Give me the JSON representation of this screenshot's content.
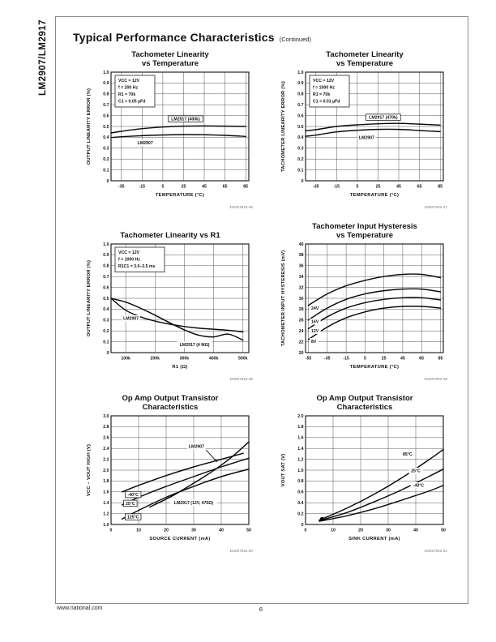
{
  "page": {
    "side_title": "LM2907/LM2917"
  },
  "header": {
    "title": "Typical Performance Characteristics",
    "continued": "(Continued)"
  },
  "footer": {
    "url": "www.national.com",
    "page_number": "6"
  },
  "chart_data": [
    {
      "type": "line",
      "title_lines": [
        "Tachometer Linearity",
        "vs Temperature"
      ],
      "code": "DS007942-46",
      "xlabel": "TEMPERATURE (°C)",
      "ylabel": "OUTPUT LINEARITY ERROR (%)",
      "xlim": [
        -45,
        88
      ],
      "ylim": [
        0,
        1
      ],
      "grid": true,
      "legend": "none",
      "xticks": {
        "values": [
          -35,
          -15,
          5,
          25,
          45,
          65,
          85
        ],
        "labels": [
          "-35",
          "-15",
          "5",
          "25",
          "45",
          "65",
          "85"
        ]
      },
      "yticks": {
        "values": [
          0,
          0.1,
          0.2,
          0.3,
          0.4,
          0.5,
          0.6,
          0.7,
          0.8,
          0.9,
          1.0
        ],
        "labels": [
          "0",
          "0.1",
          "0.2",
          "0.3",
          "0.4",
          "0.5",
          "0.6",
          "0.7",
          "0.8",
          "0.9",
          "1.0"
        ]
      },
      "conditions": [
        "VCC = 12V",
        "f = 200 Hz",
        "R1 = 70k",
        "C1 = 0.05 µFd"
      ],
      "series": [
        {
          "name": "LM2917 (400k)",
          "x": [
            -45,
            -35,
            -15,
            5,
            25,
            45,
            65,
            85
          ],
          "y": [
            0.44,
            0.455,
            0.48,
            0.495,
            0.503,
            0.505,
            0.503,
            0.5
          ]
        },
        {
          "name": "LM2907",
          "x": [
            -45,
            -35,
            -15,
            5,
            25,
            45,
            65,
            85
          ],
          "y": [
            0.398,
            0.405,
            0.415,
            0.422,
            0.425,
            0.424,
            0.418,
            0.408
          ]
        }
      ],
      "annotations": [
        {
          "text": "LM2917 (400k)",
          "x": 27,
          "y": 0.57,
          "boxed": true
        },
        {
          "text": "LM2907",
          "x": -12,
          "y": 0.35
        }
      ]
    },
    {
      "type": "line",
      "title_lines": [
        "Tachometer Linearity",
        "vs Temperature"
      ],
      "code": "DS007942-47",
      "xlabel": "TEMPERATURE (°C)",
      "ylabel": "TACHOMETER LINEARITY ERROR (%)",
      "xlim": [
        -45,
        88
      ],
      "ylim": [
        0,
        1
      ],
      "grid": true,
      "legend": "none",
      "xticks": {
        "values": [
          -35,
          -15,
          5,
          25,
          45,
          65,
          85
        ],
        "labels": [
          "-35",
          "-15",
          "5",
          "25",
          "45",
          "65",
          "85"
        ]
      },
      "yticks": {
        "values": [
          0,
          0.1,
          0.2,
          0.3,
          0.4,
          0.5,
          0.6,
          0.7,
          0.8,
          0.9,
          1.0
        ],
        "labels": [
          "0",
          "0.1",
          "0.2",
          "0.3",
          "0.4",
          "0.5",
          "0.6",
          "0.7",
          "0.8",
          "0.9",
          "1.0"
        ]
      },
      "conditions": [
        "VCC = 12V",
        "f = 1000 Hz",
        "R1 = 70k",
        "C1 = 0.01 µFd"
      ],
      "series": [
        {
          "name": "LM2917 (470k)",
          "x": [
            -45,
            -35,
            -15,
            5,
            25,
            45,
            65,
            85
          ],
          "y": [
            0.46,
            0.47,
            0.5,
            0.515,
            0.525,
            0.528,
            0.522,
            0.512
          ]
        },
        {
          "name": "LM2907",
          "x": [
            -45,
            -35,
            -15,
            5,
            25,
            45,
            65,
            85
          ],
          "y": [
            0.41,
            0.42,
            0.45,
            0.465,
            0.473,
            0.473,
            0.463,
            0.452
          ]
        }
      ],
      "annotations": [
        {
          "text": "LM2917 (470k)",
          "x": 30,
          "y": 0.585,
          "boxed": true
        },
        {
          "text": "LM2907",
          "x": 14,
          "y": 0.4
        }
      ]
    },
    {
      "type": "line",
      "title_lines": [
        "Tachometer Linearity vs R1"
      ],
      "code": "DS007942-48",
      "xlabel": "R1 (Ω)",
      "ylabel": "OUTPUT LINEARITY ERROR (%)",
      "xlim": [
        50,
        520
      ],
      "ylim": [
        0,
        1
      ],
      "grid": true,
      "legend": "none",
      "xticks": {
        "values": [
          100,
          200,
          300,
          400,
          500
        ],
        "labels": [
          "100k",
          "200k",
          "300k",
          "400k",
          "500k"
        ]
      },
      "yticks": {
        "values": [
          0,
          0.1,
          0.2,
          0.3,
          0.4,
          0.5,
          0.6,
          0.7,
          0.8,
          0.9,
          1.0
        ],
        "labels": [
          "0",
          "0.1",
          "0.2",
          "0.3",
          "0.4",
          "0.5",
          "0.6",
          "0.7",
          "0.8",
          "0.9",
          "1.0"
        ]
      },
      "conditions": [
        "VCC = 12V",
        "f = 1000 Hz",
        "R1C1 = 3.0–3.5 ms"
      ],
      "series": [
        {
          "name": "LM2907",
          "x": [
            50,
            100,
            150,
            200,
            250,
            300,
            350,
            400,
            450,
            500
          ],
          "y": [
            0.5,
            0.39,
            0.33,
            0.29,
            0.262,
            0.24,
            0.225,
            0.215,
            0.205,
            0.19
          ]
        },
        {
          "name": "LM2917 (4 MΩ)",
          "x": [
            50,
            100,
            150,
            200,
            250,
            300,
            350,
            400,
            450,
            500
          ],
          "y": [
            0.5,
            0.465,
            0.41,
            0.345,
            0.275,
            0.21,
            0.16,
            0.145,
            0.17,
            0.115
          ]
        }
      ],
      "annotations": [
        {
          "text": "LM2907",
          "x": 118,
          "y": 0.315
        },
        {
          "text": "LM2917 (4 MΩ)",
          "x": 335,
          "y": 0.075
        }
      ]
    },
    {
      "type": "line",
      "title_lines": [
        "Tachometer Input Hysteresis",
        "vs Temperature"
      ],
      "code": "DS007942-49",
      "xlabel": "TEMPERATURE (°C)",
      "ylabel": "TACHOMETER INPUT HYSTERESIS (mV)",
      "xlim": [
        -58,
        88
      ],
      "ylim": [
        20,
        40
      ],
      "grid": true,
      "legend": "none",
      "xticks": {
        "values": [
          -55,
          -35,
          -15,
          5,
          25,
          45,
          65,
          85
        ],
        "labels": [
          "-55",
          "-35",
          "-15",
          "5",
          "25",
          "45",
          "65",
          "85"
        ]
      },
      "yticks": {
        "values": [
          20,
          22,
          24,
          26,
          28,
          30,
          32,
          34,
          36,
          38,
          40
        ],
        "labels": [
          "20",
          "22",
          "24",
          "26",
          "28",
          "30",
          "32",
          "34",
          "36",
          "38",
          "40"
        ]
      },
      "conditions": [],
      "series": [
        {
          "name": "24V",
          "x": [
            -55,
            -35,
            -15,
            5,
            25,
            45,
            65,
            85
          ],
          "y": [
            28.7,
            30.8,
            32.3,
            33.3,
            34.0,
            34.4,
            34.4,
            33.8
          ]
        },
        {
          "name": "16V",
          "x": [
            -55,
            -35,
            -15,
            5,
            25,
            45,
            65,
            85
          ],
          "y": [
            26.0,
            28.2,
            29.8,
            30.8,
            31.4,
            31.7,
            31.7,
            31.2
          ]
        },
        {
          "name": "12V",
          "x": [
            -55,
            -35,
            -15,
            5,
            25,
            45,
            65,
            85
          ],
          "y": [
            24.4,
            26.6,
            28.2,
            29.2,
            29.8,
            30.1,
            30.1,
            29.7
          ]
        },
        {
          "name": "8V",
          "x": [
            -55,
            -35,
            -15,
            5,
            25,
            45,
            65,
            85
          ],
          "y": [
            22.4,
            24.7,
            26.4,
            27.5,
            28.2,
            28.5,
            28.5,
            28.2
          ]
        }
      ],
      "annotations": [
        {
          "text": "24V",
          "x": -52,
          "y": 28.2,
          "anchor": "start"
        },
        {
          "text": "16V",
          "x": -52,
          "y": 25.7,
          "anchor": "start"
        },
        {
          "text": "12V",
          "x": -52,
          "y": 24.0,
          "anchor": "start"
        },
        {
          "text": "8V",
          "x": -52,
          "y": 22.1,
          "anchor": "start"
        }
      ]
    },
    {
      "type": "line",
      "title_lines": [
        "Op Amp Output Transistor",
        "Characteristics"
      ],
      "code": "DS007942-50",
      "xlabel": "SOURCE CURRENT (mA)",
      "ylabel": "VCC − VOUT HIGH (V)",
      "xlim": [
        0,
        50
      ],
      "ylim": [
        1.0,
        3.0
      ],
      "grid": true,
      "legend": "none",
      "xticks": {
        "values": [
          0,
          10,
          20,
          30,
          40,
          50
        ],
        "labels": [
          "0",
          "10",
          "20",
          "30",
          "40",
          "50"
        ]
      },
      "yticks": {
        "values": [
          1.0,
          1.2,
          1.4,
          1.6,
          1.8,
          2.0,
          2.2,
          2.4,
          2.6,
          2.8,
          3.0
        ],
        "labels": [
          "1.0",
          "1.2",
          "1.4",
          "1.6",
          "1.8",
          "2.0",
          "2.2",
          "2.4",
          "2.6",
          "2.8",
          "3.0"
        ]
      },
      "conditions": [],
      "series": [
        {
          "name": "-40°C",
          "x": [
            4,
            10,
            20,
            30,
            40,
            48
          ],
          "y": [
            1.6,
            1.72,
            1.9,
            2.06,
            2.2,
            2.31
          ]
        },
        {
          "name": "25°C",
          "x": [
            4,
            10,
            20,
            30,
            40,
            50
          ],
          "y": [
            1.36,
            1.5,
            1.7,
            1.88,
            2.06,
            2.22
          ]
        },
        {
          "name": "125°C",
          "x": [
            4,
            10,
            20,
            30,
            40,
            50
          ],
          "y": [
            1.1,
            1.26,
            1.5,
            1.7,
            1.88,
            2.02
          ]
        },
        {
          "name": "LM2907",
          "x": [
            14,
            22,
            30,
            38,
            44,
            50
          ],
          "y": [
            1.32,
            1.52,
            1.76,
            2.02,
            2.25,
            2.52
          ]
        }
      ],
      "annotations": [
        {
          "text": "LM2907",
          "x": 31,
          "y": 2.44,
          "arrow": [
            34.5,
            2.37,
            38.5,
            2.15
          ]
        },
        {
          "text": "LM2917 (12V, 470Ω)",
          "x": 30,
          "y": 1.4
        },
        {
          "text": "-40°C",
          "x": 8,
          "y": 1.55,
          "boxed": true
        },
        {
          "text": "25°C",
          "x": 7,
          "y": 1.39,
          "boxed": true
        },
        {
          "text": "125°C",
          "x": 8,
          "y": 1.14,
          "boxed": true
        }
      ]
    },
    {
      "type": "line",
      "title_lines": [
        "Op Amp Output Transistor",
        "Characteristics"
      ],
      "code": "DS007942-51",
      "xlabel": "SINK CURRENT (mA)",
      "ylabel": "VOUT SAT (V)",
      "xlim": [
        0,
        50
      ],
      "ylim": [
        0,
        2.0
      ],
      "grid": true,
      "legend": "none",
      "xticks": {
        "values": [
          0,
          10,
          20,
          30,
          40,
          50
        ],
        "labels": [
          "0",
          "10",
          "20",
          "30",
          "40",
          "50"
        ]
      },
      "yticks": {
        "values": [
          0,
          0.2,
          0.4,
          0.6,
          0.8,
          1.0,
          1.2,
          1.4,
          1.6,
          1.8,
          2.0
        ],
        "labels": [
          "0",
          "0.2",
          "0.4",
          "0.6",
          "0.8",
          "1.0",
          "1.2",
          "1.4",
          "1.6",
          "1.8",
          "2.0"
        ]
      },
      "conditions": [],
      "series": [
        {
          "name": "85°C",
          "x": [
            5,
            15,
            25,
            35,
            45,
            50
          ],
          "y": [
            0.08,
            0.3,
            0.56,
            0.86,
            1.2,
            1.38
          ]
        },
        {
          "name": "25°C",
          "x": [
            5,
            15,
            25,
            35,
            45,
            50
          ],
          "y": [
            0.07,
            0.22,
            0.42,
            0.64,
            0.89,
            1.02
          ]
        },
        {
          "name": "-40°C",
          "x": [
            5,
            15,
            25,
            35,
            45,
            50
          ],
          "y": [
            0.06,
            0.16,
            0.29,
            0.45,
            0.62,
            0.72
          ]
        }
      ],
      "annotations": [
        {
          "text": "85°C",
          "x": 37,
          "y": 1.3
        },
        {
          "text": "25°C",
          "x": 40,
          "y": 0.99
        },
        {
          "text": "-40°C",
          "x": 41,
          "y": 0.72
        },
        {
          "text": "",
          "x": 6,
          "y": 0.1,
          "dot": true
        }
      ]
    }
  ]
}
